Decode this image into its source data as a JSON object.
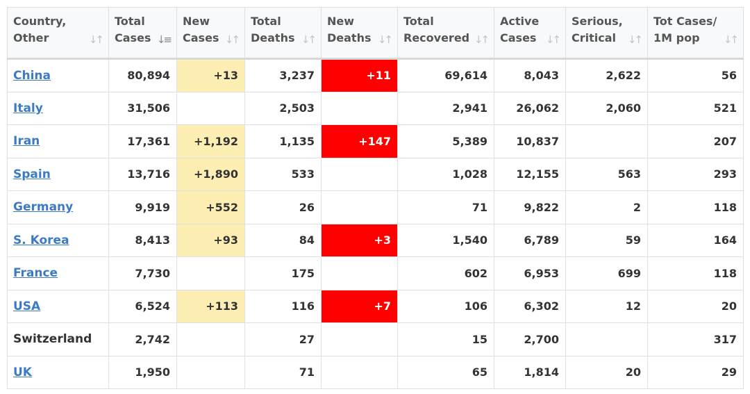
{
  "columns": [
    {
      "key": "country",
      "label": "Country,\nOther",
      "sort_active": false
    },
    {
      "key": "total_cases",
      "label": "Total\nCases",
      "sort_active": true
    },
    {
      "key": "new_cases",
      "label": "New\nCases",
      "sort_active": false
    },
    {
      "key": "total_deaths",
      "label": "Total\nDeaths",
      "sort_active": false
    },
    {
      "key": "new_deaths",
      "label": "New\nDeaths",
      "sort_active": false
    },
    {
      "key": "total_recovered",
      "label": "Total\nRecovered",
      "sort_active": false
    },
    {
      "key": "active_cases",
      "label": "Active\nCases",
      "sort_active": false
    },
    {
      "key": "serious_critical",
      "label": "Serious,\nCritical",
      "sort_active": false
    },
    {
      "key": "tot_cases_per_1m",
      "label": "Tot Cases/\n1M pop",
      "sort_active": false
    }
  ],
  "icons": {
    "sort": "sort-updown-icon",
    "sort_active": "sort-descending-icon"
  },
  "colors": {
    "link": "#3c7bc4",
    "new_cases_bg": "#fdeeb4",
    "new_deaths_bg": "#ff0000",
    "text": "#333333",
    "header_text": "#555555"
  },
  "rows": [
    {
      "country": "China",
      "link": true,
      "total_cases": "80,894",
      "new_cases": "+13",
      "total_deaths": "3,237",
      "new_deaths": "+11",
      "total_recovered": "69,614",
      "active_cases": "8,043",
      "serious_critical": "2,622",
      "tot_cases_per_1m": "56"
    },
    {
      "country": "Italy",
      "link": true,
      "total_cases": "31,506",
      "new_cases": "",
      "total_deaths": "2,503",
      "new_deaths": "",
      "total_recovered": "2,941",
      "active_cases": "26,062",
      "serious_critical": "2,060",
      "tot_cases_per_1m": "521"
    },
    {
      "country": "Iran",
      "link": true,
      "total_cases": "17,361",
      "new_cases": "+1,192",
      "total_deaths": "1,135",
      "new_deaths": "+147",
      "total_recovered": "5,389",
      "active_cases": "10,837",
      "serious_critical": "",
      "tot_cases_per_1m": "207"
    },
    {
      "country": "Spain",
      "link": true,
      "total_cases": "13,716",
      "new_cases": "+1,890",
      "total_deaths": "533",
      "new_deaths": "",
      "total_recovered": "1,028",
      "active_cases": "12,155",
      "serious_critical": "563",
      "tot_cases_per_1m": "293"
    },
    {
      "country": "Germany",
      "link": true,
      "total_cases": "9,919",
      "new_cases": "+552",
      "total_deaths": "26",
      "new_deaths": "",
      "total_recovered": "71",
      "active_cases": "9,822",
      "serious_critical": "2",
      "tot_cases_per_1m": "118"
    },
    {
      "country": "S. Korea",
      "link": true,
      "total_cases": "8,413",
      "new_cases": "+93",
      "total_deaths": "84",
      "new_deaths": "+3",
      "total_recovered": "1,540",
      "active_cases": "6,789",
      "serious_critical": "59",
      "tot_cases_per_1m": "164"
    },
    {
      "country": "France",
      "link": true,
      "total_cases": "7,730",
      "new_cases": "",
      "total_deaths": "175",
      "new_deaths": "",
      "total_recovered": "602",
      "active_cases": "6,953",
      "serious_critical": "699",
      "tot_cases_per_1m": "118"
    },
    {
      "country": "USA",
      "link": true,
      "total_cases": "6,524",
      "new_cases": "+113",
      "total_deaths": "116",
      "new_deaths": "+7",
      "total_recovered": "106",
      "active_cases": "6,302",
      "serious_critical": "12",
      "tot_cases_per_1m": "20"
    },
    {
      "country": "Switzerland",
      "link": false,
      "total_cases": "2,742",
      "new_cases": "",
      "total_deaths": "27",
      "new_deaths": "",
      "total_recovered": "15",
      "active_cases": "2,700",
      "serious_critical": "",
      "tot_cases_per_1m": "317"
    },
    {
      "country": "UK",
      "link": true,
      "total_cases": "1,950",
      "new_cases": "",
      "total_deaths": "71",
      "new_deaths": "",
      "total_recovered": "65",
      "active_cases": "1,814",
      "serious_critical": "20",
      "tot_cases_per_1m": "29"
    }
  ]
}
